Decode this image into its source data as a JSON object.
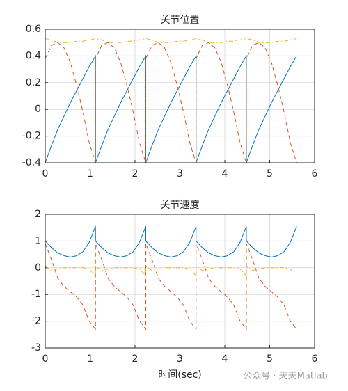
{
  "chart_data": [
    {
      "type": "line",
      "title": "关节位置",
      "x": [
        0,
        0.14,
        0.28,
        0.42,
        0.56,
        0.7,
        0.84,
        0.98,
        1.12,
        1.12,
        1.26,
        1.4,
        1.54,
        1.68,
        1.82,
        1.96,
        2.1,
        2.24,
        2.24,
        2.38,
        2.52,
        2.66,
        2.8,
        2.94,
        3.08,
        3.22,
        3.36,
        3.36,
        3.5,
        3.64,
        3.78,
        3.92,
        4.06,
        4.2,
        4.34,
        4.48,
        4.48,
        4.62,
        4.76,
        4.9,
        5.04,
        5.18,
        5.32,
        5.46,
        5.6
      ],
      "series": [
        {
          "color": "#0072bd",
          "dash": "solid",
          "values": [
            -0.4,
            -0.27,
            -0.15,
            -0.05,
            0.05,
            0.14,
            0.23,
            0.32,
            0.4,
            -0.4,
            -0.27,
            -0.15,
            -0.05,
            0.05,
            0.14,
            0.23,
            0.32,
            0.4,
            -0.4,
            -0.27,
            -0.15,
            -0.05,
            0.05,
            0.14,
            0.23,
            0.32,
            0.4,
            -0.4,
            -0.27,
            -0.15,
            -0.05,
            0.05,
            0.14,
            0.23,
            0.32,
            0.4,
            -0.4,
            -0.27,
            -0.15,
            -0.05,
            0.05,
            0.14,
            0.23,
            0.32,
            0.4
          ]
        },
        {
          "color": "#d95319",
          "dash": "dashed",
          "values": [
            0.38,
            0.48,
            0.5,
            0.46,
            0.35,
            0.18,
            -0.02,
            -0.25,
            -0.4,
            0.38,
            0.48,
            0.5,
            0.46,
            0.35,
            0.18,
            -0.02,
            -0.25,
            -0.4,
            0.38,
            0.48,
            0.5,
            0.46,
            0.35,
            0.18,
            -0.02,
            -0.25,
            -0.4,
            0.38,
            0.48,
            0.5,
            0.46,
            0.35,
            0.18,
            -0.02,
            -0.25,
            -0.4,
            0.38,
            0.48,
            0.5,
            0.46,
            0.35,
            0.18,
            -0.02,
            -0.25,
            -0.4
          ]
        },
        {
          "color": "#edb120",
          "dash": "dashdot",
          "values": [
            0.53,
            0.52,
            0.5,
            0.5,
            0.5,
            0.51,
            0.51,
            0.52,
            0.53,
            0.53,
            0.52,
            0.5,
            0.5,
            0.5,
            0.51,
            0.51,
            0.52,
            0.53,
            0.53,
            0.52,
            0.5,
            0.5,
            0.5,
            0.51,
            0.51,
            0.52,
            0.53,
            0.53,
            0.52,
            0.5,
            0.5,
            0.5,
            0.51,
            0.51,
            0.52,
            0.53,
            0.53,
            0.52,
            0.5,
            0.5,
            0.5,
            0.51,
            0.51,
            0.52,
            0.53
          ]
        }
      ],
      "xlim": [
        0,
        6
      ],
      "xticks": [
        0,
        1,
        2,
        3,
        4,
        5,
        6
      ],
      "ylim": [
        -0.4,
        0.6
      ],
      "yticks": [
        -0.4,
        -0.2,
        0,
        0.2,
        0.4,
        0.6
      ],
      "grid": true
    },
    {
      "type": "line",
      "title": "关节速度",
      "x_label": "时间(sec)",
      "x": [
        0,
        0.14,
        0.28,
        0.42,
        0.56,
        0.7,
        0.84,
        0.98,
        1.12,
        1.12,
        1.26,
        1.4,
        1.54,
        1.68,
        1.82,
        1.96,
        2.1,
        2.24,
        2.24,
        2.38,
        2.52,
        2.66,
        2.8,
        2.94,
        3.08,
        3.22,
        3.36,
        3.36,
        3.5,
        3.64,
        3.78,
        3.92,
        4.06,
        4.2,
        4.34,
        4.48,
        4.48,
        4.62,
        4.76,
        4.9,
        5.04,
        5.18,
        5.32,
        5.46,
        5.6
      ],
      "series": [
        {
          "color": "#0072bd",
          "dash": "solid",
          "values": [
            1.0,
            0.75,
            0.55,
            0.45,
            0.4,
            0.45,
            0.6,
            0.95,
            1.55,
            1.0,
            0.75,
            0.55,
            0.45,
            0.4,
            0.45,
            0.6,
            0.95,
            1.55,
            1.0,
            0.75,
            0.55,
            0.45,
            0.4,
            0.45,
            0.6,
            0.95,
            1.55,
            1.0,
            0.75,
            0.55,
            0.45,
            0.4,
            0.45,
            0.6,
            0.95,
            1.55,
            1.0,
            0.75,
            0.55,
            0.45,
            0.4,
            0.45,
            0.6,
            0.95,
            1.55
          ]
        },
        {
          "color": "#d95319",
          "dash": "dashed",
          "values": [
            0.9,
            0.3,
            -0.4,
            -0.7,
            -0.9,
            -1.1,
            -1.4,
            -2.0,
            -2.3,
            0.9,
            0.3,
            -0.4,
            -0.7,
            -0.9,
            -1.1,
            -1.4,
            -2.0,
            -2.3,
            0.9,
            0.3,
            -0.4,
            -0.7,
            -0.9,
            -1.1,
            -1.4,
            -2.0,
            -2.3,
            0.9,
            0.3,
            -0.4,
            -0.7,
            -0.9,
            -1.1,
            -1.4,
            -2.0,
            -2.3,
            0.9,
            0.3,
            -0.4,
            -0.7,
            -0.9,
            -1.1,
            -1.4,
            -2.0,
            -2.3
          ]
        },
        {
          "color": "#edb120",
          "dash": "dashdot",
          "values": [
            0.05,
            -0.1,
            -0.05,
            0,
            0,
            0,
            0,
            -0.05,
            -0.3,
            0.05,
            -0.1,
            -0.05,
            0,
            0,
            0,
            0,
            -0.05,
            -0.3,
            0.05,
            -0.1,
            -0.05,
            0,
            0,
            0,
            0,
            -0.05,
            -0.3,
            0.05,
            -0.1,
            -0.05,
            0,
            0,
            0,
            0,
            -0.05,
            -0.3,
            0.05,
            -0.1,
            -0.05,
            0,
            0,
            0,
            0,
            -0.05,
            -0.3
          ]
        }
      ],
      "xlim": [
        0,
        6
      ],
      "xticks": [
        0,
        1,
        2,
        3,
        4,
        5,
        6
      ],
      "ylim": [
        -3,
        2
      ],
      "yticks": [
        -3,
        -2,
        -1,
        0,
        1,
        2
      ],
      "grid": true
    }
  ],
  "watermark": "公众号 · 天天Matlab"
}
